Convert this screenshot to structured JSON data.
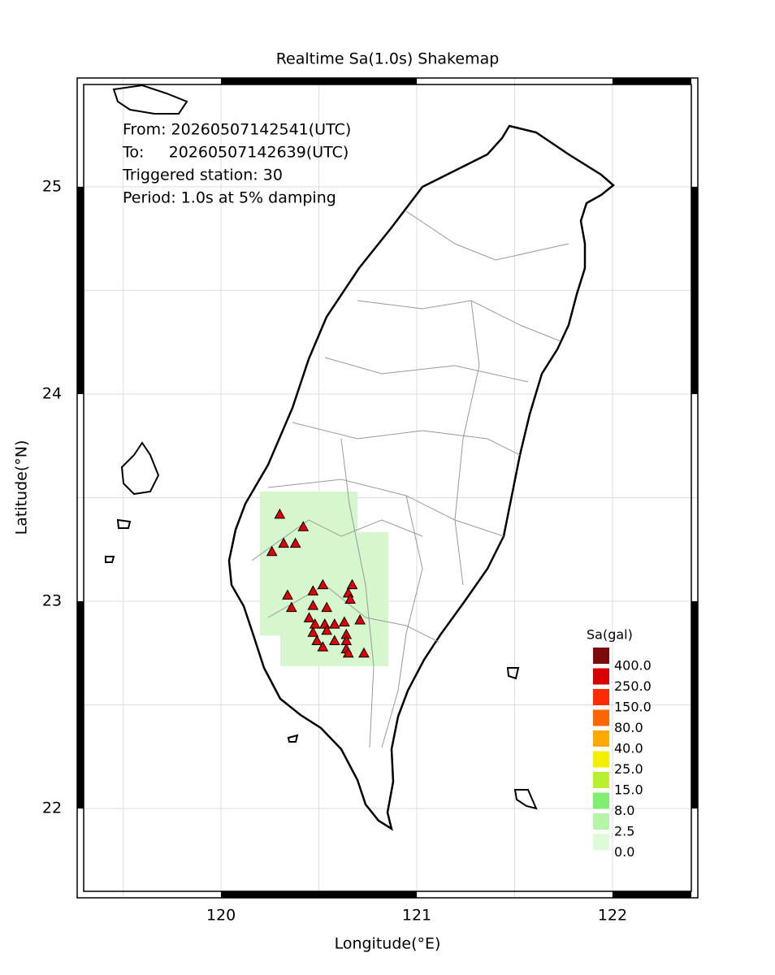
{
  "chart_data": {
    "type": "map",
    "title": "Realtime Sa(1.0s) Shakemap",
    "x_label": "Longitude(°E)",
    "y_label": "Latitude(°N)",
    "xlim": [
      119.265,
      122.436
    ],
    "ylim": [
      21.569,
      25.525
    ],
    "xticks": [
      120,
      121,
      122
    ],
    "yticks": [
      22,
      23,
      24,
      25
    ],
    "grid_x": [
      119.5,
      120,
      120.5,
      121,
      121.5,
      122
    ],
    "grid_y": [
      22,
      22.5,
      23,
      23.5,
      24,
      24.5,
      25
    ],
    "info": [
      "From: 20260507142541(UTC)",
      "To:     20260507142639(UTC)",
      "Triggered station: 30",
      "Period: 1.0s at 5% damping"
    ],
    "stations": {
      "name": "Triggered station",
      "color": "#e00000",
      "lon": [
        120.3,
        120.42,
        120.32,
        120.38,
        120.26,
        120.52,
        120.67,
        120.47,
        120.65,
        120.34,
        120.36,
        120.47,
        120.54,
        120.66,
        120.45,
        120.48,
        120.53,
        120.58,
        120.63,
        120.71,
        120.47,
        120.54,
        120.64,
        120.49,
        120.58,
        120.64,
        120.52,
        120.64,
        120.73,
        120.65
      ],
      "lat": [
        23.42,
        23.36,
        23.28,
        23.28,
        23.24,
        23.08,
        23.08,
        23.05,
        23.04,
        23.03,
        22.97,
        22.98,
        22.97,
        23.01,
        22.92,
        22.89,
        22.89,
        22.89,
        22.9,
        22.91,
        22.85,
        22.86,
        22.84,
        22.81,
        22.81,
        22.81,
        22.78,
        22.77,
        22.75,
        22.75
      ]
    },
    "legend": {
      "title": "Sa(gal)",
      "levels": [
        {
          "value": 400,
          "label": "400.0"
        },
        {
          "value": 250,
          "label": "250.0"
        },
        {
          "value": 150,
          "label": "150.0"
        },
        {
          "value": 80,
          "label": "80.0"
        },
        {
          "value": 40,
          "label": "40.0"
        },
        {
          "value": 25,
          "label": "25.0"
        },
        {
          "value": 15,
          "label": "15.0"
        },
        {
          "value": 8,
          "label": "8.0"
        },
        {
          "value": 2.5,
          "label": "2.5"
        },
        {
          "value": 0,
          "label": "0.0"
        }
      ],
      "colors": [
        "#7a0c0c",
        "#d80000",
        "#ff2a00",
        "#ff6600",
        "#ffaa00",
        "#f0f000",
        "#b8ef30",
        "#80ee70",
        "#b6f5a8",
        "#dcfbd6"
      ]
    }
  }
}
